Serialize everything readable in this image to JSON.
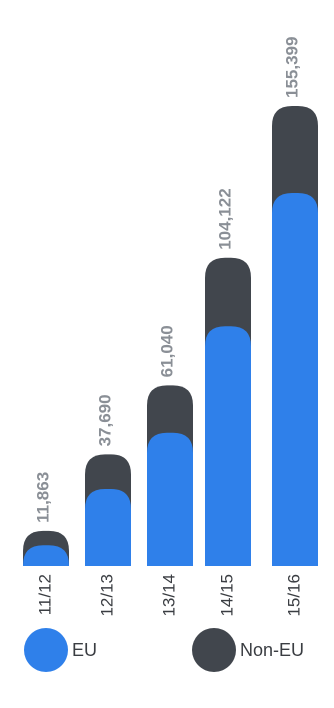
{
  "chart_data": {
    "type": "bar",
    "stacked": true,
    "categories": [
      "11/12",
      "12/13",
      "13/14",
      "14/15",
      "15/16"
    ],
    "totals": [
      "11,863",
      "37,690",
      "61,040",
      "104,122",
      "155,399"
    ],
    "series": [
      {
        "name": "EU",
        "values": [
          7000,
          26000,
          45000,
          81000,
          126000
        ],
        "color": "#2f80ea"
      },
      {
        "name": "Non-EU",
        "values": [
          4863,
          11690,
          16040,
          23122,
          29399
        ],
        "color": "#41464d"
      }
    ],
    "ylim": [
      0,
      155399
    ]
  },
  "legend": {
    "eu_label": "EU",
    "non_eu_label": "Non-EU"
  },
  "colors": {
    "eu": "#2f80ea",
    "non_eu": "#41464d",
    "label_text": "#8a8f96",
    "tick_text": "#3a3d42"
  }
}
